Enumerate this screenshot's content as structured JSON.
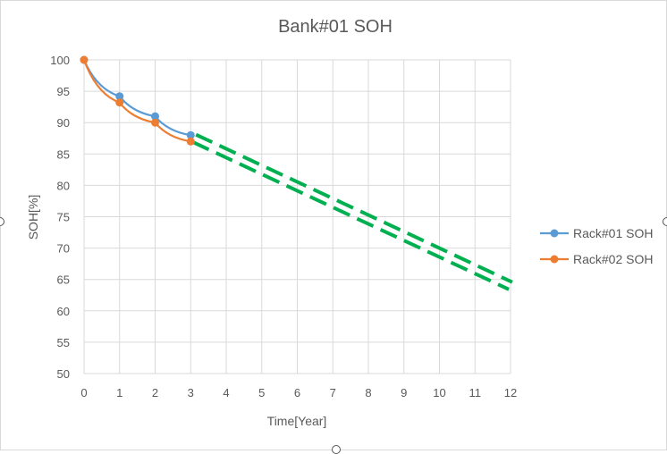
{
  "chart_data": {
    "type": "line",
    "title": "Bank#01 SOH",
    "xlabel": "Time[Year]",
    "ylabel": "SOH[%]",
    "x_ticks": [
      "0",
      "1",
      "2",
      "3",
      "4",
      "5",
      "6",
      "7",
      "8",
      "9",
      "10",
      "11",
      "12"
    ],
    "y_ticks": [
      "50",
      "55",
      "60",
      "65",
      "70",
      "75",
      "80",
      "85",
      "90",
      "95",
      "100"
    ],
    "xlim": [
      0,
      12
    ],
    "ylim": [
      50,
      100
    ],
    "grid": true,
    "legend_position": "right",
    "series": [
      {
        "name": "Rack#01 SOH",
        "color": "#5b9bd5",
        "x": [
          0,
          1,
          2,
          3
        ],
        "y": [
          100,
          94.2,
          91,
          88
        ]
      },
      {
        "name": "Rack#02 SOH",
        "color": "#ed7d31",
        "x": [
          0,
          1,
          2,
          3
        ],
        "y": [
          100,
          93.2,
          90,
          87
        ]
      }
    ],
    "projection": {
      "color": "#00b050",
      "style": "double-dashed",
      "x": [
        3,
        12
      ],
      "y": [
        87.5,
        64
      ]
    }
  }
}
